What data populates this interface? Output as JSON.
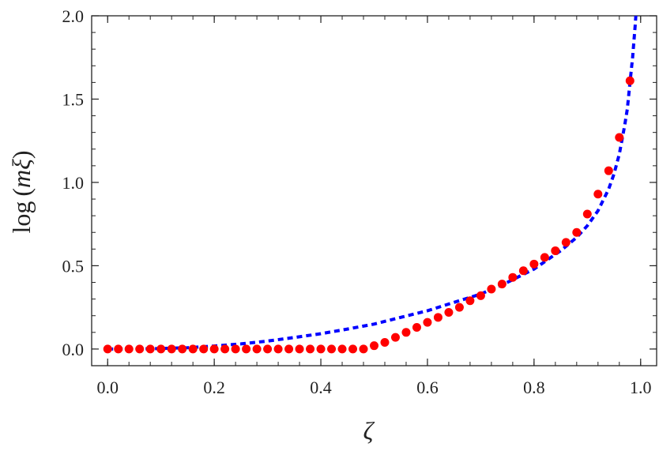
{
  "chart_data": {
    "type": "scatter",
    "title": "",
    "xlabel": "ζ",
    "ylabel": {
      "prefix": "log",
      "open": "(",
      "var": "mξ",
      "close": ")"
    },
    "xlim": [
      -0.03,
      1.03
    ],
    "ylim": [
      -0.1,
      2.0
    ],
    "xticks": [
      0.0,
      0.2,
      0.4,
      0.6,
      0.8,
      1.0
    ],
    "xtick_labels": [
      "0.0",
      "0.2",
      "0.4",
      "0.6",
      "0.8",
      "1.0"
    ],
    "yticks": [
      0.0,
      0.5,
      1.0,
      1.5,
      2.0
    ],
    "ytick_labels": [
      "0.0",
      "0.5",
      "1.0",
      "1.5",
      "2.0"
    ],
    "grid": false,
    "frame": true,
    "series": [
      {
        "kind": "points",
        "color": "#ff0000",
        "x": [
          0.0,
          0.02,
          0.04,
          0.06,
          0.08,
          0.1,
          0.12,
          0.14,
          0.16,
          0.18,
          0.2,
          0.22,
          0.24,
          0.26,
          0.28,
          0.3,
          0.32,
          0.34,
          0.36,
          0.38,
          0.4,
          0.42,
          0.44,
          0.46,
          0.48,
          0.5,
          0.52,
          0.54,
          0.56,
          0.58,
          0.6,
          0.62,
          0.64,
          0.66,
          0.68,
          0.7,
          0.72,
          0.74,
          0.76,
          0.78,
          0.8,
          0.82,
          0.84,
          0.86,
          0.88,
          0.9,
          0.92,
          0.94,
          0.96,
          0.98
        ],
        "y": [
          0,
          0,
          0,
          0,
          0,
          0,
          0,
          0,
          0,
          0,
          0,
          0,
          0,
          0,
          0,
          0,
          0,
          0,
          0,
          0,
          0,
          0,
          0,
          0,
          0,
          0.02,
          0.04,
          0.07,
          0.1,
          0.13,
          0.16,
          0.19,
          0.22,
          0.25,
          0.29,
          0.32,
          0.36,
          0.39,
          0.43,
          0.47,
          0.51,
          0.55,
          0.59,
          0.64,
          0.7,
          0.81,
          0.93,
          1.07,
          1.27,
          1.61
        ]
      },
      {
        "kind": "dashed-line",
        "color": "#0000ff",
        "x": [
          0.0,
          0.05,
          0.1,
          0.15,
          0.2,
          0.25,
          0.3,
          0.35,
          0.4,
          0.45,
          0.5,
          0.55,
          0.6,
          0.65,
          0.7,
          0.75,
          0.8,
          0.85,
          0.88,
          0.9,
          0.92,
          0.94,
          0.95,
          0.96,
          0.97,
          0.975,
          0.98,
          0.985,
          0.99,
          0.995
        ],
        "y": [
          0.0,
          0.0,
          0.003,
          0.008,
          0.018,
          0.031,
          0.048,
          0.069,
          0.092,
          0.12,
          0.15,
          0.19,
          0.23,
          0.28,
          0.33,
          0.4,
          0.48,
          0.59,
          0.67,
          0.74,
          0.83,
          0.96,
          1.05,
          1.17,
          1.34,
          1.44,
          1.6,
          1.75,
          1.95,
          2.2
        ]
      }
    ]
  }
}
